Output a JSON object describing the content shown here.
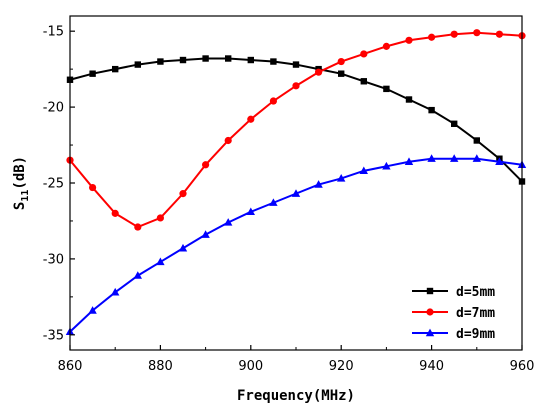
{
  "chart_data": {
    "type": "line",
    "xlabel": "Frequency(MHz)",
    "ylabel_main": "S",
    "ylabel_sub": "11",
    "ylabel_unit": "(dB)",
    "xlim": [
      860,
      960
    ],
    "ylim": [
      -36,
      -14
    ],
    "xticks": [
      860,
      880,
      900,
      920,
      940,
      960
    ],
    "yticks": [
      -15,
      -20,
      -25,
      -30,
      -35
    ],
    "grid": false,
    "legend_position": "bottom-right",
    "x": [
      860,
      865,
      870,
      875,
      880,
      885,
      890,
      895,
      900,
      905,
      910,
      915,
      920,
      925,
      930,
      935,
      940,
      945,
      950,
      955,
      960
    ],
    "series": [
      {
        "name": "d=5mm",
        "color": "#000000",
        "marker": "square",
        "values": [
          -18.2,
          -17.8,
          -17.5,
          -17.2,
          -17.0,
          -16.9,
          -16.8,
          -16.8,
          -16.9,
          -17.0,
          -17.2,
          -17.5,
          -17.8,
          -18.3,
          -18.8,
          -19.5,
          -20.2,
          -21.1,
          -22.2,
          -23.4,
          -24.9
        ]
      },
      {
        "name": "d=7mm",
        "color": "#ff0000",
        "marker": "circle",
        "values": [
          -23.5,
          -25.3,
          -27.0,
          -27.9,
          -27.3,
          -25.7,
          -23.8,
          -22.2,
          -20.8,
          -19.6,
          -18.6,
          -17.7,
          -17.0,
          -16.5,
          -16.0,
          -15.6,
          -15.4,
          -15.2,
          -15.1,
          -15.2,
          -15.3
        ]
      },
      {
        "name": "d=9mm",
        "color": "#0000ff",
        "marker": "triangle",
        "values": [
          -34.8,
          -33.4,
          -32.2,
          -31.1,
          -30.2,
          -29.3,
          -28.4,
          -27.6,
          -26.9,
          -26.3,
          -25.7,
          -25.1,
          -24.7,
          -24.2,
          -23.9,
          -23.6,
          -23.4,
          -23.4,
          -23.4,
          -23.6,
          -23.8
        ]
      }
    ]
  }
}
